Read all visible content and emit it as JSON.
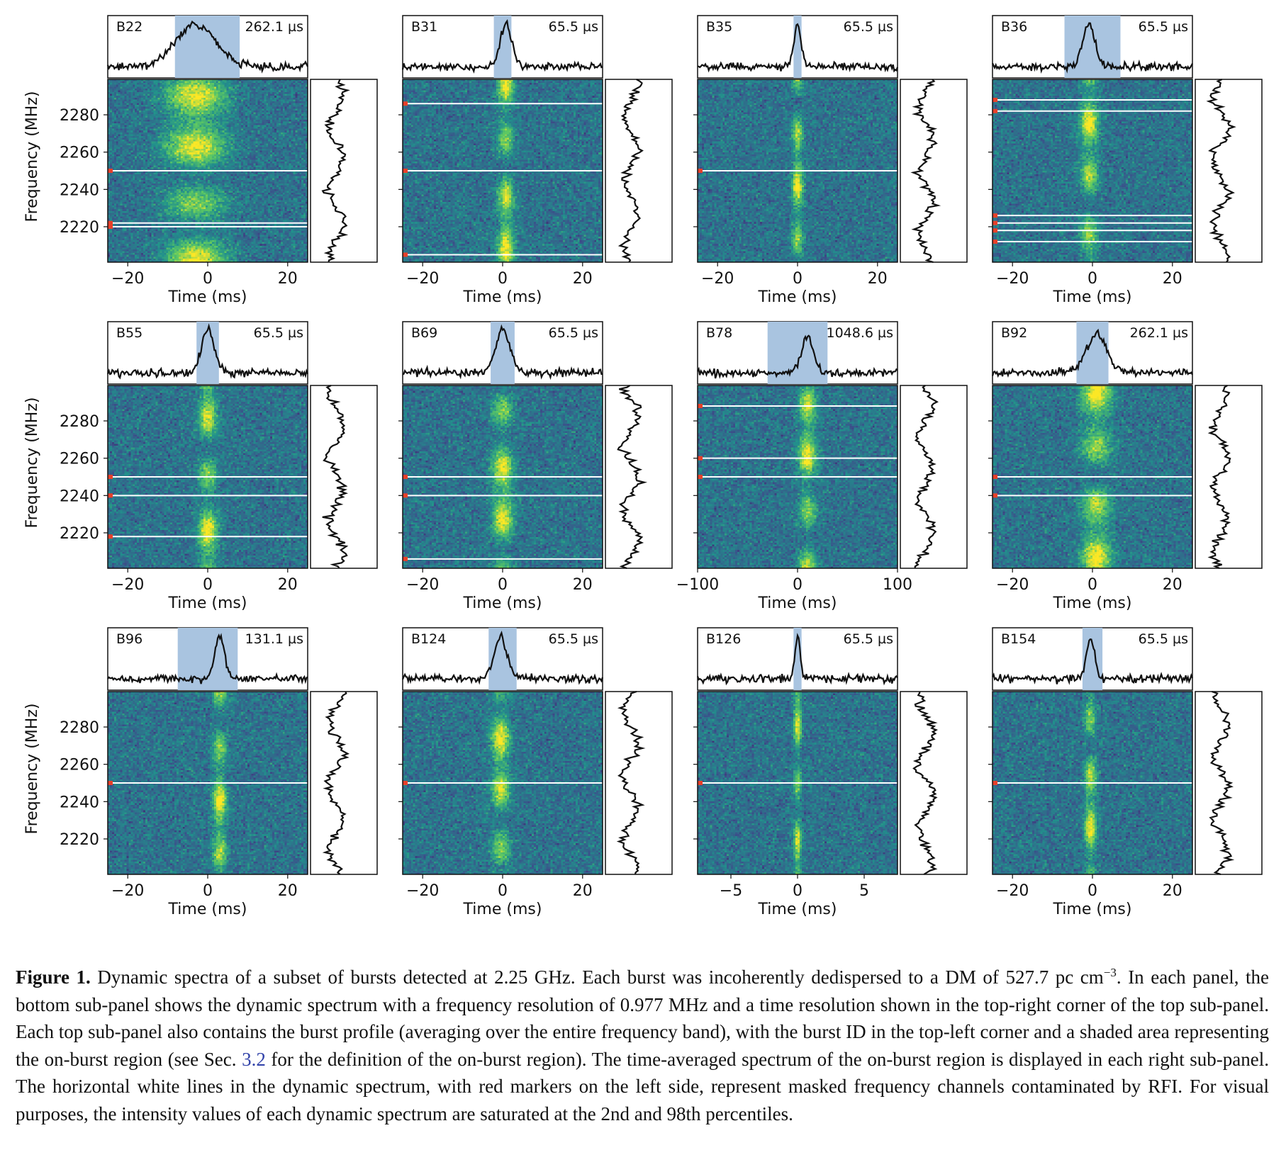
{
  "figure": {
    "caption": {
      "label": "Figure 1.",
      "part1": " Dynamic spectra of a subset of bursts detected at 2.25 GHz.  Each burst was incoherently dedispersed to a DM of 527.7 pc cm",
      "exponent": "−3",
      "part2": ". In each panel, the bottom sub-panel shows the dynamic spectrum with a frequency resolution of 0.977 MHz and a time resolution shown in the top-right corner of the top sub-panel.  Each top sub-panel also contains the burst profile (averaging over the entire frequency band), with the burst ID in the top-left corner and a shaded area representing the on-burst region (see Sec. ",
      "section_ref": "3.2",
      "part3": " for the definition of the on-burst region). The time-averaged spectrum of the on-burst region is displayed in each right sub-panel.  The horizontal white lines in the dynamic spectrum, with red markers on the left side, represent masked frequency channels contaminated by RFI.  For visual purposes, the intensity values of each dynamic spectrum are saturated at the 2nd and 98th percentiles."
    }
  },
  "colors": {
    "onburst_shade": "#a9c4e0",
    "profile_line": "#111111",
    "mask_line": "#ffffff",
    "rfi_marker": "#e8402a",
    "colormap": [
      "#440154",
      "#3b528b",
      "#21918c",
      "#5ec962",
      "#fde725"
    ]
  },
  "chart_data": [
    {
      "type": "heatmap",
      "burst_id": "B22",
      "time_resolution": "262.1 µs",
      "xlabel": "Time (ms)",
      "ylabel": "Frequency (MHz)",
      "xlim": [
        -25,
        25
      ],
      "xticks": [
        "−20",
        "0",
        "20"
      ],
      "ylim": [
        2201,
        2299
      ],
      "yticks": [
        "2220",
        "2240",
        "2260",
        "2280"
      ],
      "on_burst": [
        -8.2,
        8.0
      ],
      "peak_time": -3,
      "burst_width": 5,
      "peak_height": 1.0,
      "masked_channels_mhz": [
        2250,
        2222,
        2220
      ]
    },
    {
      "type": "heatmap",
      "burst_id": "B31",
      "time_resolution": "65.5 µs",
      "xlabel": "Time (ms)",
      "ylabel": "",
      "xlim": [
        -25,
        25
      ],
      "xticks": [
        "−20",
        "0",
        "20"
      ],
      "ylim": [
        2201,
        2299
      ],
      "yticks": [],
      "on_burst": [
        -2.2,
        2.2
      ],
      "peak_time": 0.8,
      "burst_width": 1.4,
      "peak_height": 1.0,
      "masked_channels_mhz": [
        2286,
        2250,
        2205
      ]
    },
    {
      "type": "heatmap",
      "burst_id": "B35",
      "time_resolution": "65.5 µs",
      "xlabel": "Time (ms)",
      "ylabel": "",
      "xlim": [
        -25,
        25
      ],
      "xticks": [
        "−20",
        "0",
        "20"
      ],
      "ylim": [
        2201,
        2299
      ],
      "yticks": [],
      "on_burst": [
        -1.0,
        1.0
      ],
      "peak_time": 0,
      "burst_width": 0.9,
      "peak_height": 1.0,
      "masked_channels_mhz": [
        2250
      ]
    },
    {
      "type": "heatmap",
      "burst_id": "B36",
      "time_resolution": "65.5 µs",
      "xlabel": "Time (ms)",
      "ylabel": "",
      "xlim": [
        -25,
        25
      ],
      "xticks": [
        "−20",
        "0",
        "20"
      ],
      "ylim": [
        2201,
        2299
      ],
      "yticks": [],
      "on_burst": [
        -7.0,
        7.0
      ],
      "peak_time": -0.8,
      "burst_width": 1.5,
      "peak_height": 1.0,
      "masked_channels_mhz": [
        2288,
        2282,
        2226,
        2222,
        2218,
        2212
      ]
    },
    {
      "type": "heatmap",
      "burst_id": "B55",
      "time_resolution": "65.5 µs",
      "xlabel": "Time (ms)",
      "ylabel": "Frequency (MHz)",
      "xlim": [
        -25,
        25
      ],
      "xticks": [
        "−20",
        "0",
        "20"
      ],
      "ylim": [
        2201,
        2299
      ],
      "yticks": [
        "2220",
        "2240",
        "2260",
        "2280"
      ],
      "on_burst": [
        -2.8,
        2.8
      ],
      "peak_time": 0,
      "burst_width": 1.6,
      "peak_height": 1.0,
      "masked_channels_mhz": [
        2250,
        2240,
        2218
      ]
    },
    {
      "type": "heatmap",
      "burst_id": "B69",
      "time_resolution": "65.5 µs",
      "xlabel": "Time (ms)",
      "ylabel": "",
      "xlim": [
        -25,
        25
      ],
      "xticks": [
        "−20",
        "0",
        "20"
      ],
      "ylim": [
        2201,
        2299
      ],
      "yticks": [],
      "on_burst": [
        -3.0,
        3.0
      ],
      "peak_time": 0,
      "burst_width": 1.8,
      "peak_height": 1.0,
      "masked_channels_mhz": [
        2250,
        2240,
        2206
      ]
    },
    {
      "type": "heatmap",
      "burst_id": "B78",
      "time_resolution": "1048.6 µs",
      "xlabel": "Time (ms)",
      "ylabel": "",
      "xlim": [
        -100,
        100
      ],
      "xticks": [
        "−100",
        "0",
        "100"
      ],
      "ylim": [
        2201,
        2299
      ],
      "yticks": [],
      "on_burst": [
        -30,
        30
      ],
      "peak_time": 10,
      "burst_width": 6,
      "peak_height": 0.85,
      "masked_channels_mhz": [
        2288,
        2260,
        2250
      ]
    },
    {
      "type": "heatmap",
      "burst_id": "B92",
      "time_resolution": "262.1 µs",
      "xlabel": "Time (ms)",
      "ylabel": "",
      "xlim": [
        -25,
        25
      ],
      "xticks": [
        "−20",
        "0",
        "20"
      ],
      "ylim": [
        2201,
        2299
      ],
      "yticks": [],
      "on_burst": [
        -4.0,
        4.0
      ],
      "peak_time": 1,
      "burst_width": 2.5,
      "peak_height": 0.9,
      "masked_channels_mhz": [
        2250,
        2240
      ]
    },
    {
      "type": "heatmap",
      "burst_id": "B96",
      "time_resolution": "131.1 µs",
      "xlabel": "Time (ms)",
      "ylabel": "Frequency (MHz)",
      "xlim": [
        -25,
        25
      ],
      "xticks": [
        "−20",
        "0",
        "20"
      ],
      "ylim": [
        2201,
        2299
      ],
      "yticks": [
        "2220",
        "2240",
        "2260",
        "2280"
      ],
      "on_burst": [
        -7.5,
        7.5
      ],
      "peak_time": 3,
      "burst_width": 1.2,
      "peak_height": 1.0,
      "masked_channels_mhz": [
        2250
      ]
    },
    {
      "type": "heatmap",
      "burst_id": "B124",
      "time_resolution": "65.5 µs",
      "xlabel": "Time (ms)",
      "ylabel": "",
      "xlim": [
        -25,
        25
      ],
      "xticks": [
        "−20",
        "0",
        "20"
      ],
      "ylim": [
        2201,
        2299
      ],
      "yticks": [],
      "on_burst": [
        -3.5,
        3.5
      ],
      "peak_time": -0.5,
      "burst_width": 1.6,
      "peak_height": 1.0,
      "masked_channels_mhz": [
        2250
      ]
    },
    {
      "type": "heatmap",
      "burst_id": "B126",
      "time_resolution": "65.5 µs",
      "xlabel": "Time (ms)",
      "ylabel": "",
      "xlim": [
        -7.5,
        7.5
      ],
      "xticks": [
        "−5",
        "0",
        "5"
      ],
      "ylim": [
        2201,
        2299
      ],
      "yticks": [],
      "on_burst": [
        -0.3,
        0.3
      ],
      "peak_time": 0,
      "burst_width": 0.2,
      "peak_height": 1.0,
      "masked_channels_mhz": [
        2250
      ]
    },
    {
      "type": "heatmap",
      "burst_id": "B154",
      "time_resolution": "65.5 µs",
      "xlabel": "Time (ms)",
      "ylabel": "",
      "xlim": [
        -25,
        25
      ],
      "xticks": [
        "−20",
        "0",
        "20"
      ],
      "ylim": [
        2201,
        2299
      ],
      "yticks": [],
      "on_burst": [
        -2.5,
        2.5
      ],
      "peak_time": -0.5,
      "burst_width": 1.0,
      "peak_height": 1.0,
      "masked_channels_mhz": [
        2250
      ]
    }
  ]
}
